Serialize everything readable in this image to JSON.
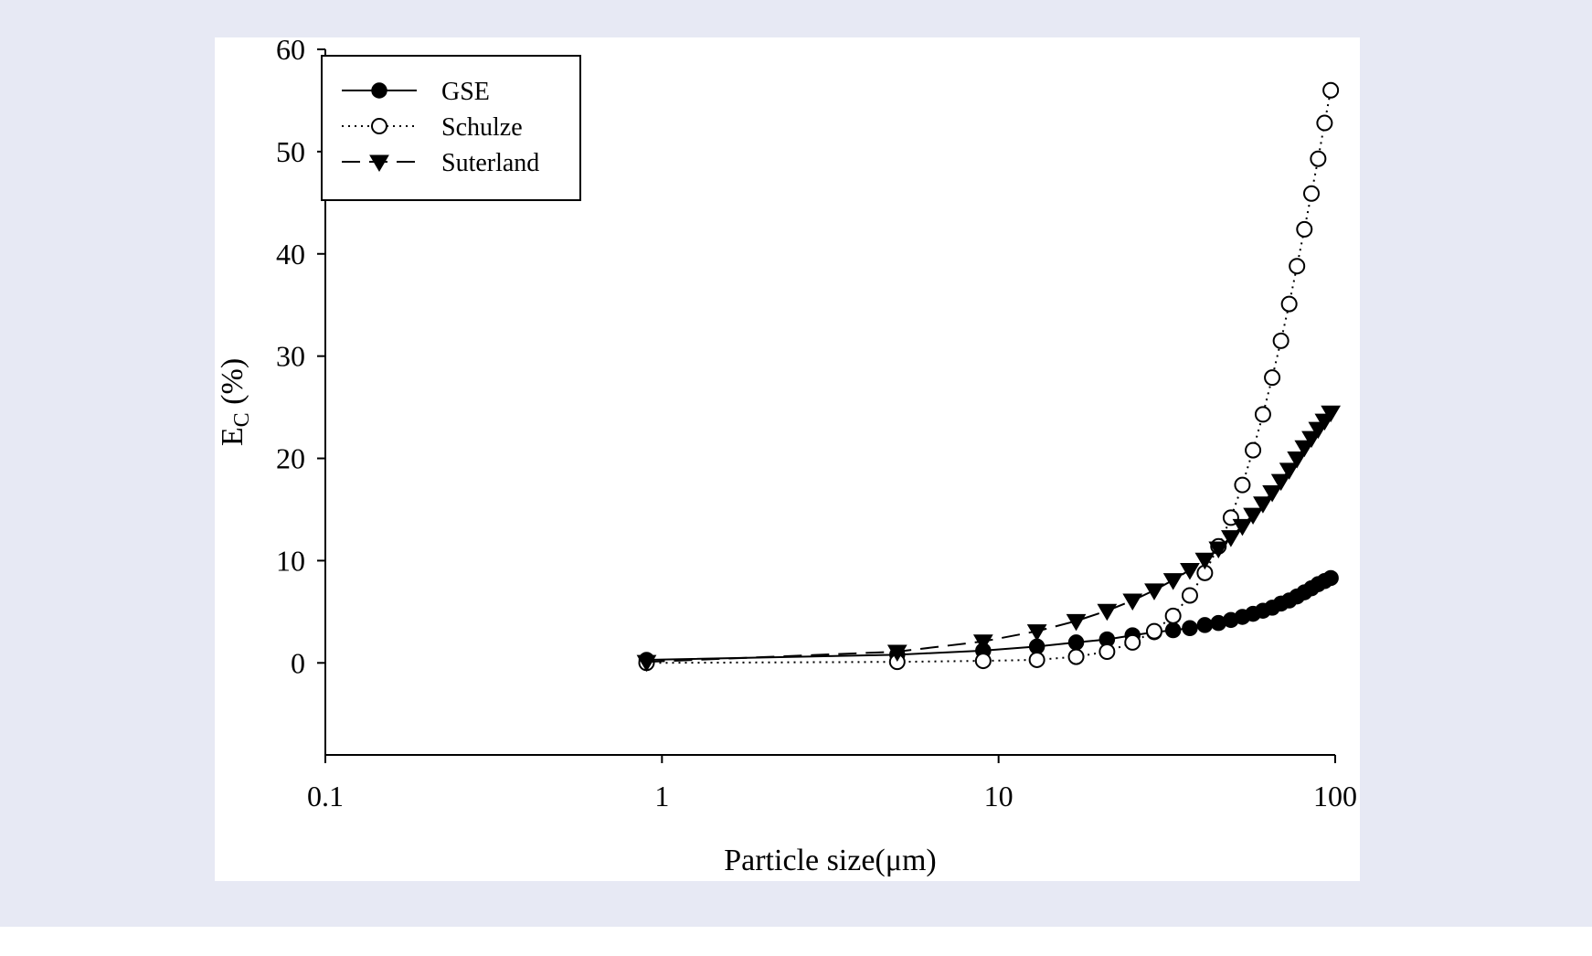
{
  "chart_data": {
    "type": "scatter",
    "xlabel": "Particle size(μm)",
    "ylabel_main": "E",
    "ylabel_sub": "C",
    "ylabel_tail": " (%)",
    "xscale": "log",
    "xlim": [
      0.1,
      100
    ],
    "ylim": [
      -9,
      60
    ],
    "xticks": [
      0.1,
      1,
      10,
      100
    ],
    "xtick_labels": [
      "0.1",
      "1",
      "10",
      "100"
    ],
    "yticks": [
      0,
      10,
      20,
      30,
      40,
      50,
      60
    ],
    "ytick_labels": [
      "0",
      "10",
      "20",
      "30",
      "40",
      "50",
      "60"
    ],
    "grid": false,
    "legend_position": "top-left",
    "series": [
      {
        "name": "GSE",
        "marker": "filled-circle",
        "line": "solid",
        "x": [
          0.9,
          5,
          9,
          13,
          17,
          21,
          25,
          29,
          33,
          37,
          41,
          45,
          49,
          53,
          57,
          61,
          65,
          69,
          73,
          77,
          81,
          85,
          89,
          93,
          97
        ],
        "y": [
          0.3,
          0.8,
          1.2,
          1.6,
          2.0,
          2.3,
          2.7,
          3.0,
          3.2,
          3.4,
          3.7,
          3.9,
          4.2,
          4.5,
          4.8,
          5.1,
          5.4,
          5.8,
          6.1,
          6.5,
          6.9,
          7.3,
          7.7,
          8.0,
          8.3
        ]
      },
      {
        "name": "Schulze",
        "marker": "open-circle",
        "line": "dotted",
        "x": [
          0.9,
          5,
          9,
          13,
          17,
          21,
          25,
          29,
          33,
          37,
          41,
          45,
          49,
          53,
          57,
          61,
          65,
          69,
          73,
          77,
          81,
          85,
          89,
          93,
          97
        ],
        "y": [
          0.0,
          0.1,
          0.2,
          0.3,
          0.6,
          1.1,
          2.0,
          3.1,
          4.6,
          6.6,
          8.8,
          11.4,
          14.2,
          17.4,
          20.8,
          24.3,
          27.9,
          31.5,
          35.1,
          38.8,
          42.4,
          45.9,
          49.3,
          52.8,
          56.0
        ]
      },
      {
        "name": "Suterland",
        "marker": "filled-triangle-down",
        "line": "dashed",
        "x": [
          0.9,
          5,
          9,
          13,
          17,
          21,
          25,
          29,
          33,
          37,
          41,
          45,
          49,
          53,
          57,
          61,
          65,
          69,
          73,
          77,
          81,
          85,
          89,
          93,
          97
        ],
        "y": [
          0.1,
          1.1,
          2.1,
          3.1,
          4.1,
          5.1,
          6.1,
          7.1,
          8.1,
          9.1,
          10.1,
          11.2,
          12.3,
          13.4,
          14.5,
          15.6,
          16.7,
          17.8,
          18.9,
          20.0,
          21.1,
          22.0,
          22.9,
          23.7,
          24.5
        ]
      }
    ]
  }
}
